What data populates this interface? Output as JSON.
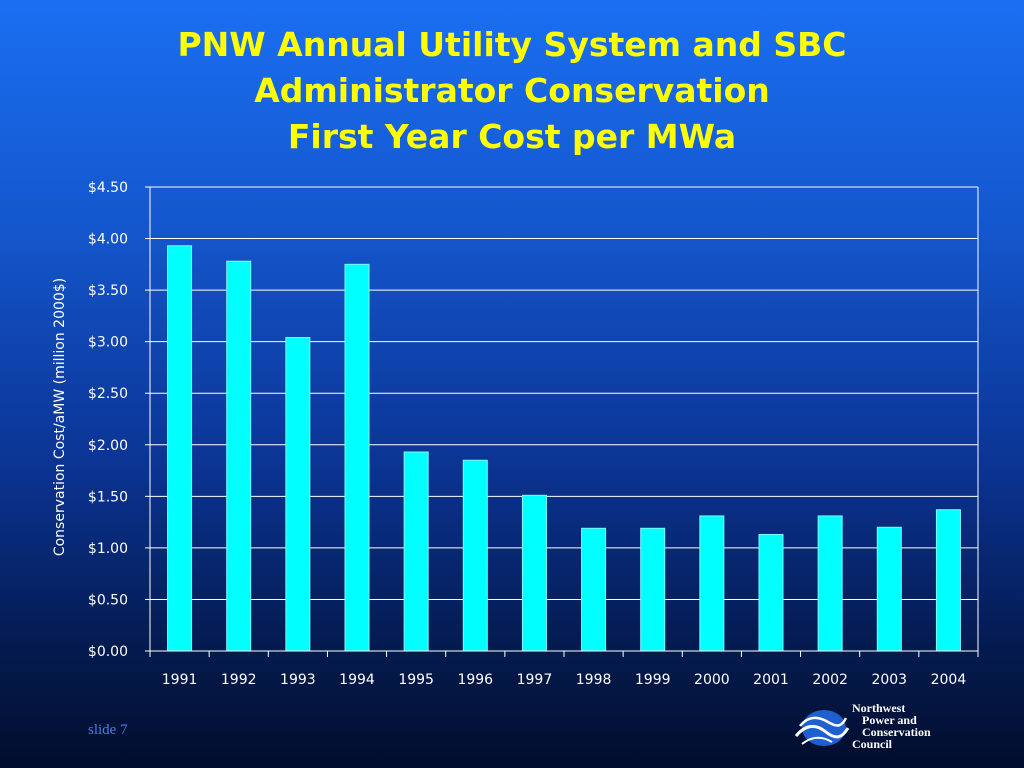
{
  "slide": {
    "title_lines": [
      "PNW Annual Utility System and SBC",
      "Administrator Conservation",
      "First Year Cost per MWa"
    ],
    "slide_number": "slide 7"
  },
  "logo": {
    "lines": [
      "Northwest",
      "Power and",
      "Conservation",
      "Council"
    ],
    "icon": "waves-logo-icon"
  },
  "colors": {
    "title": "#ffff00",
    "bar_fill": "#00ffff",
    "gridline": "#ffffff"
  },
  "chart_data": {
    "type": "bar",
    "categories": [
      "1991",
      "1992",
      "1993",
      "1994",
      "1995",
      "1996",
      "1997",
      "1998",
      "1999",
      "2000",
      "2001",
      "2002",
      "2003",
      "2004"
    ],
    "values": [
      3.93,
      3.78,
      3.04,
      3.75,
      1.93,
      1.85,
      1.51,
      1.19,
      1.19,
      1.31,
      1.13,
      1.31,
      1.2,
      1.37
    ],
    "ylabel": "Conservation Cost/aMW (million 2000$)",
    "xlabel": "",
    "ylim": [
      0,
      4.5
    ],
    "yticks": [
      0,
      0.5,
      1.0,
      1.5,
      2.0,
      2.5,
      3.0,
      3.5,
      4.0,
      4.5
    ],
    "ytick_labels": [
      "$0.00",
      "$0.50",
      "$1.00",
      "$1.50",
      "$2.00",
      "$2.50",
      "$3.00",
      "$3.50",
      "$4.00",
      "$4.50"
    ],
    "grid": true,
    "legend": "none"
  }
}
